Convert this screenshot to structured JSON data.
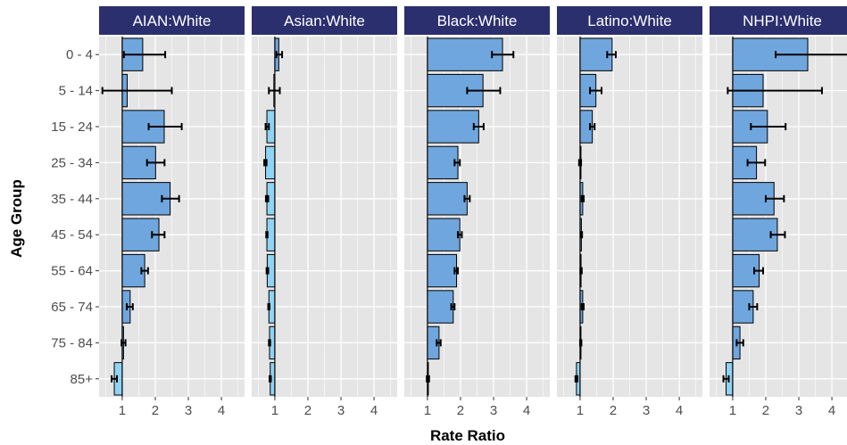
{
  "chart_data": {
    "type": "bar",
    "orientation": "horizontal",
    "xlabel": "Rate Ratio",
    "ylabel": "Age Group",
    "reference_line": 1,
    "xlim": [
      0.3,
      4.7
    ],
    "xticks": [
      "1",
      "2",
      "3",
      "4"
    ],
    "categories": [
      "0 - 4",
      "5 - 14",
      "15 - 24",
      "25 - 34",
      "35 - 44",
      "45 - 54",
      "55 - 64",
      "65 - 74",
      "75 - 84",
      "85+"
    ],
    "colors": {
      "strip_fill": "#2b2f6e",
      "panel_bg": "#e5e5e5",
      "grid": "#ffffff",
      "bar_above": "#6fa6de",
      "bar_below": "#8fd3f5",
      "bar_stroke": "#000000"
    },
    "panels": [
      {
        "name": "AIAN:White",
        "values": [
          1.62,
          1.15,
          2.27,
          2.01,
          2.45,
          2.11,
          1.68,
          1.24,
          1.04,
          0.76
        ],
        "ci_low": [
          1.05,
          0.4,
          1.8,
          1.75,
          2.2,
          1.9,
          1.58,
          1.14,
          0.98,
          0.68
        ],
        "ci_high": [
          2.3,
          2.5,
          2.8,
          2.28,
          2.72,
          2.28,
          1.78,
          1.32,
          1.1,
          0.84
        ]
      },
      {
        "name": "Asian:White",
        "values": [
          1.12,
          0.97,
          0.76,
          0.72,
          0.76,
          0.76,
          0.77,
          0.82,
          0.84,
          0.86
        ],
        "ci_low": [
          1.05,
          0.82,
          0.72,
          0.68,
          0.73,
          0.74,
          0.75,
          0.8,
          0.82,
          0.84
        ],
        "ci_high": [
          1.22,
          1.15,
          0.82,
          0.75,
          0.8,
          0.78,
          0.8,
          0.84,
          0.86,
          0.88
        ]
      },
      {
        "name": "Black:White",
        "values": [
          3.27,
          2.68,
          2.55,
          1.92,
          2.2,
          1.98,
          1.88,
          1.78,
          1.35,
          1.02
        ],
        "ci_low": [
          2.95,
          2.2,
          2.4,
          1.82,
          2.12,
          1.92,
          1.82,
          1.72,
          1.28,
          0.98
        ],
        "ci_high": [
          3.6,
          3.2,
          2.7,
          1.98,
          2.28,
          2.04,
          1.92,
          1.82,
          1.4,
          1.05
        ]
      },
      {
        "name": "Latino:White",
        "values": [
          1.97,
          1.48,
          1.37,
          1.0,
          1.08,
          1.04,
          1.03,
          1.08,
          1.02,
          0.89
        ],
        "ci_low": [
          1.82,
          1.3,
          1.3,
          0.97,
          1.05,
          1.02,
          1.01,
          1.05,
          1.0,
          0.86
        ],
        "ci_high": [
          2.08,
          1.65,
          1.44,
          1.03,
          1.11,
          1.06,
          1.05,
          1.11,
          1.04,
          0.92
        ]
      },
      {
        "name": "NHPI:White",
        "values": [
          3.27,
          1.92,
          2.05,
          1.72,
          2.25,
          2.35,
          1.8,
          1.62,
          1.22,
          0.8
        ],
        "ci_low": [
          2.3,
          0.85,
          1.55,
          1.45,
          2.0,
          2.15,
          1.65,
          1.5,
          1.12,
          0.72
        ],
        "ci_high": [
          4.7,
          3.7,
          2.6,
          1.98,
          2.55,
          2.58,
          1.92,
          1.74,
          1.32,
          0.88
        ]
      }
    ]
  }
}
